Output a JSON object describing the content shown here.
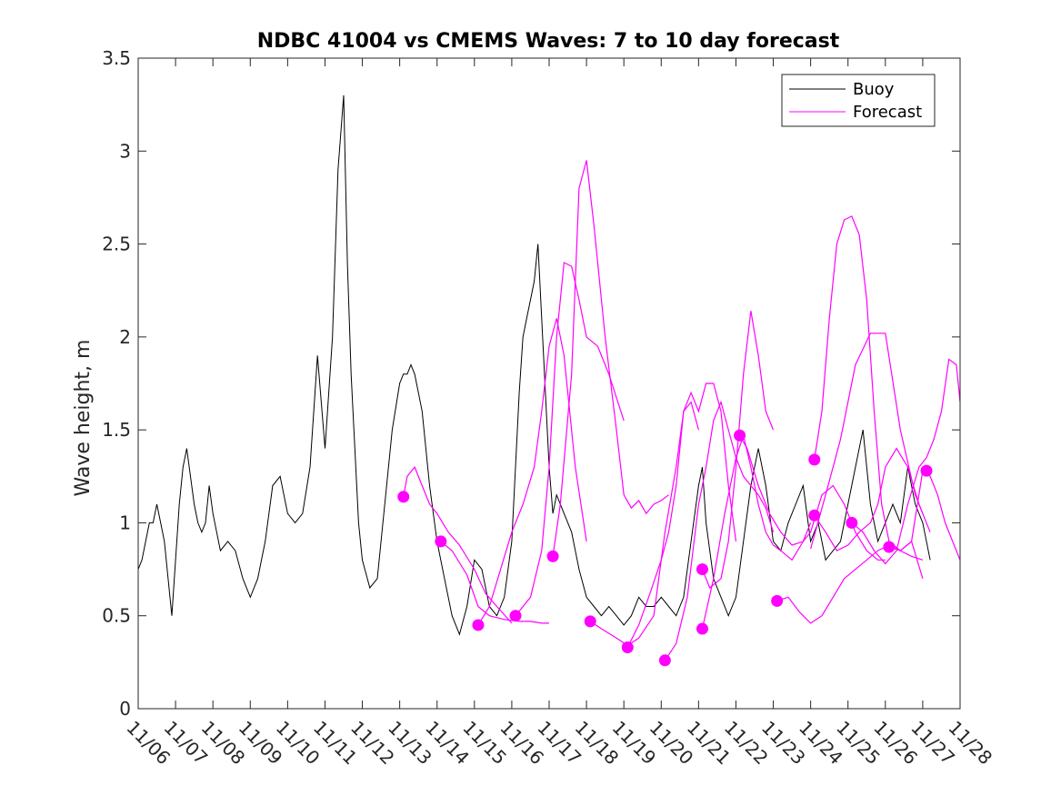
{
  "chart_data": {
    "type": "line",
    "title": "NDBC 41004 vs CMEMS Waves: 7 to 10 day forecast",
    "xlabel": "",
    "ylabel": "Wave height, m",
    "xlim": [
      0,
      22
    ],
    "ylim": [
      0,
      3.5
    ],
    "yticks": [
      0,
      0.5,
      1,
      1.5,
      2,
      2.5,
      3,
      3.5
    ],
    "ytick_labels": [
      "0",
      "0.5",
      "1",
      "1.5",
      "2",
      "2.5",
      "3",
      "3.5"
    ],
    "xticks": [
      0,
      1,
      2,
      3,
      4,
      5,
      6,
      7,
      8,
      9,
      10,
      11,
      12,
      13,
      14,
      15,
      16,
      17,
      18,
      19,
      20,
      21,
      22
    ],
    "xtick_labels": [
      "11/06",
      "11/07",
      "11/08",
      "11/09",
      "11/10",
      "11/11",
      "11/12",
      "11/13",
      "11/14",
      "11/15",
      "11/16",
      "11/17",
      "11/18",
      "11/19",
      "11/20",
      "11/21",
      "11/22",
      "11/23",
      "11/24",
      "11/25",
      "11/26",
      "11/27",
      "11/28"
    ],
    "grid": false,
    "legend": {
      "location": "top-right",
      "entries": [
        "Buoy",
        "Forecast"
      ]
    },
    "colors": {
      "buoy": "#000000",
      "forecast": "#ff00ff",
      "axes": "#262626"
    },
    "buoy": {
      "name": "Buoy",
      "x": [
        0,
        0.1,
        0.2,
        0.3,
        0.4,
        0.5,
        0.6,
        0.7,
        0.8,
        0.9,
        1.0,
        1.1,
        1.2,
        1.3,
        1.4,
        1.5,
        1.6,
        1.7,
        1.8,
        1.9,
        2.0,
        2.2,
        2.4,
        2.6,
        2.8,
        3.0,
        3.2,
        3.4,
        3.6,
        3.8,
        4.0,
        4.2,
        4.4,
        4.6,
        4.8,
        5.0,
        5.2,
        5.35,
        5.5,
        5.6,
        5.7,
        5.8,
        5.9,
        6.0,
        6.2,
        6.4,
        6.6,
        6.8,
        7.0,
        7.1,
        7.2,
        7.3,
        7.4,
        7.5,
        7.6,
        7.7,
        7.8,
        8.0,
        8.2,
        8.4,
        8.6,
        8.8,
        9.0,
        9.2,
        9.4,
        9.6,
        9.8,
        10.0,
        10.1,
        10.2,
        10.3,
        10.4,
        10.5,
        10.6,
        10.7,
        10.8,
        10.9,
        11.0,
        11.1,
        11.2,
        11.4,
        11.6,
        11.8,
        12.0,
        12.2,
        12.4,
        12.6,
        12.8,
        13.0,
        13.2,
        13.4,
        13.6,
        13.8,
        14.0,
        14.2,
        14.4,
        14.6,
        14.8,
        15.0,
        15.1,
        15.2,
        15.4,
        15.6,
        15.8,
        16.0,
        16.2,
        16.4,
        16.6,
        16.8,
        17.0,
        17.2,
        17.4,
        17.6,
        17.8,
        18.0,
        18.2,
        18.4,
        18.6,
        18.8,
        19.0,
        19.2,
        19.4,
        19.6,
        19.8,
        20.0,
        20.2,
        20.4,
        20.6,
        20.8,
        21.0,
        21.2
      ],
      "values": [
        0.75,
        0.8,
        0.9,
        1.0,
        1.0,
        1.1,
        1.0,
        0.9,
        0.7,
        0.5,
        0.8,
        1.1,
        1.3,
        1.4,
        1.25,
        1.1,
        1.0,
        0.95,
        1.0,
        1.2,
        1.05,
        0.85,
        0.9,
        0.85,
        0.7,
        0.6,
        0.7,
        0.9,
        1.2,
        1.25,
        1.05,
        1.0,
        1.05,
        1.3,
        1.9,
        1.4,
        2.0,
        2.9,
        3.3,
        2.4,
        1.8,
        1.4,
        1.0,
        0.8,
        0.65,
        0.7,
        1.1,
        1.5,
        1.75,
        1.8,
        1.8,
        1.85,
        1.8,
        1.7,
        1.6,
        1.4,
        1.2,
        0.9,
        0.7,
        0.5,
        0.4,
        0.55,
        0.8,
        0.75,
        0.55,
        0.5,
        0.6,
        0.9,
        1.3,
        1.7,
        2.0,
        2.1,
        2.2,
        2.3,
        2.5,
        2.1,
        1.7,
        1.3,
        1.05,
        1.15,
        1.05,
        0.95,
        0.75,
        0.6,
        0.55,
        0.5,
        0.55,
        0.5,
        0.45,
        0.5,
        0.6,
        0.55,
        0.55,
        0.6,
        0.55,
        0.5,
        0.6,
        0.9,
        1.2,
        1.3,
        1.0,
        0.7,
        0.6,
        0.5,
        0.6,
        0.9,
        1.2,
        1.4,
        1.2,
        0.9,
        0.85,
        1.0,
        1.1,
        1.2,
        0.9,
        1.0,
        0.8,
        0.85,
        0.9,
        1.1,
        1.3,
        1.5,
        1.1,
        0.9,
        1.0,
        1.1,
        1.0,
        1.3,
        1.1,
        1.0,
        0.8
      ]
    },
    "forecast_series": [
      {
        "name": "Forecast",
        "x": [
          7.1,
          7.2,
          7.4,
          7.6,
          7.8,
          8.0,
          8.3,
          8.6,
          9.0,
          9.3,
          9.6,
          10.0
        ],
        "values": [
          1.14,
          1.25,
          1.3,
          1.2,
          1.1,
          1.05,
          0.95,
          0.88,
          0.75,
          0.62,
          0.55,
          0.46
        ]
      },
      {
        "name": "Forecast",
        "x": [
          8.1,
          8.4,
          8.8,
          9.1,
          9.4,
          9.8,
          10.2,
          10.5,
          10.8,
          11.0
        ],
        "values": [
          0.9,
          0.85,
          0.72,
          0.55,
          0.5,
          0.48,
          0.47,
          0.47,
          0.46,
          0.46
        ]
      },
      {
        "name": "Forecast",
        "x": [
          9.1,
          9.4,
          9.7,
          10.0,
          10.3,
          10.6,
          10.8,
          11.0,
          11.2,
          11.4,
          11.7,
          12.0
        ],
        "values": [
          0.45,
          0.55,
          0.75,
          0.95,
          1.1,
          1.3,
          1.6,
          1.95,
          2.1,
          1.9,
          1.3,
          0.9
        ]
      },
      {
        "name": "Forecast",
        "x": [
          10.1,
          10.5,
          10.8,
          11.0,
          11.2,
          11.4,
          11.6,
          11.8,
          12.0,
          12.3,
          12.6,
          13.0
        ],
        "values": [
          0.5,
          0.6,
          0.85,
          1.3,
          2.0,
          2.4,
          2.38,
          2.2,
          2.0,
          1.95,
          1.8,
          1.55
        ]
      },
      {
        "name": "Forecast",
        "x": [
          11.1,
          11.3,
          11.6,
          11.8,
          12.0,
          12.2,
          12.5,
          12.8,
          13.0,
          13.2,
          13.4,
          13.6,
          13.8,
          14.0,
          14.2
        ],
        "values": [
          0.82,
          1.1,
          1.8,
          2.8,
          2.95,
          2.6,
          2.0,
          1.5,
          1.15,
          1.08,
          1.12,
          1.05,
          1.1,
          1.12,
          1.15
        ]
      },
      {
        "name": "Forecast",
        "x": [
          12.1,
          12.4,
          12.8,
          13.1,
          13.4,
          13.8,
          14.1,
          14.4,
          14.6,
          14.8,
          15.0
        ],
        "values": [
          0.47,
          0.43,
          0.38,
          0.34,
          0.38,
          0.5,
          0.95,
          1.3,
          1.6,
          1.65,
          1.5
        ]
      },
      {
        "name": "Forecast",
        "x": [
          13.1,
          13.4,
          13.7,
          14.0,
          14.2,
          14.4,
          14.6,
          14.8,
          15.0,
          15.2,
          15.4,
          15.6,
          15.8,
          16.0
        ],
        "values": [
          0.33,
          0.45,
          0.62,
          0.8,
          0.95,
          1.2,
          1.6,
          1.7,
          1.6,
          1.75,
          1.75,
          1.6,
          1.2,
          0.9
        ]
      },
      {
        "name": "Forecast",
        "x": [
          14.1,
          14.4,
          14.7,
          15.0,
          15.2,
          15.4,
          15.6,
          15.8,
          16.0,
          16.2,
          16.4,
          16.6,
          16.8,
          17.0
        ],
        "values": [
          0.26,
          0.35,
          0.6,
          1.1,
          1.3,
          1.55,
          1.65,
          1.5,
          1.35,
          1.25,
          1.2,
          1.15,
          1.08,
          0.95
        ]
      },
      {
        "name": "Forecast",
        "x": [
          15.1,
          15.3,
          15.6,
          15.8,
          16.0,
          16.2,
          16.4,
          16.6,
          16.8,
          17.0
        ],
        "values": [
          0.75,
          0.65,
          0.7,
          0.9,
          1.3,
          1.8,
          2.14,
          1.9,
          1.6,
          1.5
        ]
      },
      {
        "name": "Forecast",
        "x": [
          15.1,
          15.4,
          15.7,
          16.0,
          16.2,
          16.4,
          16.6,
          16.8,
          17.0,
          17.2,
          17.5,
          17.8,
          18.0
        ],
        "values": [
          0.43,
          0.7,
          1.05,
          1.35,
          1.47,
          1.3,
          1.1,
          0.95,
          0.88,
          0.85,
          0.8,
          0.9,
          1.0
        ]
      },
      {
        "name": "Forecast",
        "x": [
          16.1,
          16.3,
          16.6,
          16.9,
          17.2,
          17.5,
          17.8,
          18.0,
          18.3,
          18.6,
          18.9,
          19.2,
          19.5,
          19.8,
          20.0
        ],
        "values": [
          1.47,
          1.4,
          1.2,
          1.05,
          0.95,
          0.88,
          0.9,
          0.95,
          1.15,
          1.2,
          1.1,
          0.95,
          0.85,
          0.8,
          0.8
        ]
      },
      {
        "name": "Forecast",
        "x": [
          17.1,
          17.4,
          17.7,
          18.0,
          18.3,
          18.6,
          18.9,
          19.2,
          19.5,
          19.8,
          20.1,
          20.4,
          20.7,
          21.0
        ],
        "values": [
          0.58,
          0.6,
          0.52,
          0.46,
          0.5,
          0.6,
          0.7,
          0.75,
          0.8,
          0.85,
          0.88,
          0.85,
          0.9,
          0.7
        ]
      },
      {
        "name": "Forecast",
        "x": [
          18.1,
          18.3,
          18.5,
          18.7,
          18.9,
          19.1,
          19.3,
          19.5,
          19.7,
          19.9,
          20.1,
          20.4,
          20.7,
          21.0
        ],
        "values": [
          1.34,
          1.6,
          2.1,
          2.5,
          2.63,
          2.65,
          2.55,
          2.2,
          1.6,
          1.1,
          0.9,
          0.85,
          0.82,
          0.8
        ]
      },
      {
        "name": "Forecast",
        "x": [
          18.1,
          18.4,
          18.7,
          19.0,
          19.3,
          19.6,
          19.8,
          20.0,
          20.3,
          20.6,
          20.9,
          21.2
        ],
        "values": [
          1.04,
          0.95,
          0.85,
          0.88,
          0.95,
          1.0,
          1.1,
          1.3,
          1.4,
          1.3,
          1.1,
          0.95
        ]
      },
      {
        "name": "Forecast",
        "x": [
          19.1,
          19.4,
          19.7,
          20.0,
          20.3,
          20.6,
          20.9,
          21.1,
          21.3,
          21.5,
          21.7,
          21.9,
          22.0
        ],
        "values": [
          1.0,
          0.95,
          0.85,
          0.78,
          0.85,
          1.1,
          1.3,
          1.35,
          1.45,
          1.6,
          1.88,
          1.85,
          1.65
        ]
      },
      {
        "name": "Forecast",
        "x": [
          20.1,
          20.4,
          20.7,
          21.0,
          21.2,
          21.4,
          21.6,
          21.8,
          22.0
        ],
        "values": [
          0.87,
          0.85,
          0.9,
          1.28,
          1.25,
          1.15,
          1.0,
          0.9,
          0.8
        ]
      },
      {
        "name": "Forecast",
        "x": [
          18.0,
          18.4,
          18.8,
          19.2,
          19.6,
          20.0,
          20.4,
          20.8,
          21.0
        ],
        "values": [
          0.86,
          1.15,
          1.45,
          1.85,
          2.02,
          2.02,
          1.5,
          1.15,
          1.05
        ]
      }
    ],
    "forecast_markers": {
      "x": [
        7.1,
        8.1,
        9.1,
        10.1,
        11.1,
        12.1,
        13.1,
        14.1,
        15.1,
        15.1,
        16.1,
        17.1,
        18.1,
        18.1,
        19.1,
        20.1,
        21.1
      ],
      "values": [
        1.14,
        0.9,
        0.45,
        0.5,
        0.82,
        0.47,
        0.33,
        0.26,
        0.75,
        0.43,
        1.47,
        0.58,
        1.34,
        1.04,
        1.0,
        0.87,
        1.28
      ]
    }
  }
}
